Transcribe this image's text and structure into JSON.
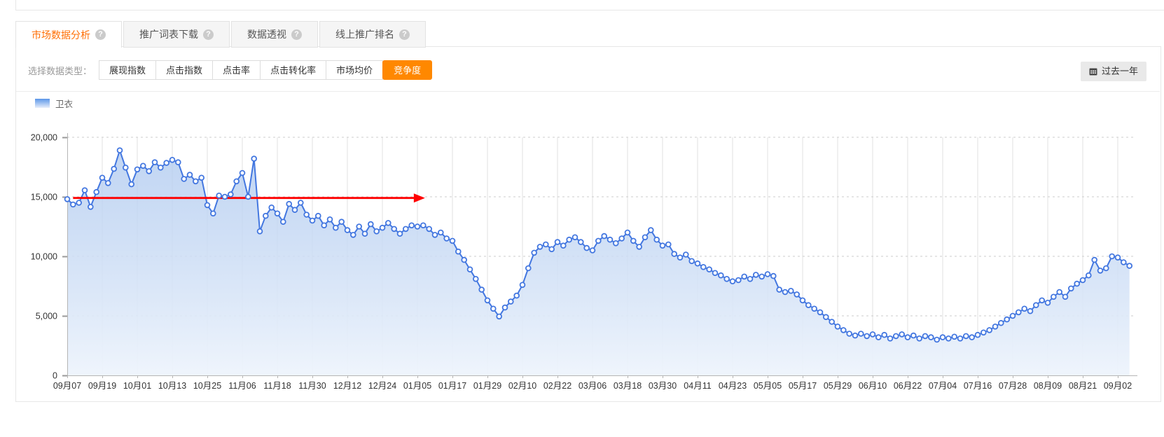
{
  "tabs": {
    "items": [
      {
        "label": "市场数据分析",
        "active": true
      },
      {
        "label": "推广词表下载",
        "active": false
      },
      {
        "label": "数据透视",
        "active": false
      },
      {
        "label": "线上推广排名",
        "active": false
      }
    ],
    "help_glyph": "?"
  },
  "toolbar": {
    "label": "选择数据类型：",
    "metric_buttons": [
      "展现指数",
      "点击指数",
      "点击率",
      "点击转化率",
      "市场均价",
      "竞争度"
    ],
    "active_metric": "竞争度",
    "date_range_label": "过去一年"
  },
  "legend": {
    "series_label": "卫衣"
  },
  "colors": {
    "accent_orange": "#ff6f06",
    "active_button_bg": "#ff8800",
    "line_blue": "#4377e0",
    "area_top": "#aac6ee",
    "area_bottom": "#eef4fc",
    "annotation_red": "#ff0000",
    "grid_vertical": "#e2e2e2",
    "grid_horizontal": "#cccccc",
    "axis": "#b5b5b5",
    "axis_text": "#333333"
  },
  "chart_data": {
    "type": "area",
    "title": "",
    "legend_position": "top-left",
    "grid": "vertical solid, horizontal dashed",
    "ylim": [
      0,
      20000
    ],
    "y_tick_values": [
      0,
      5000,
      10000,
      15000,
      20000
    ],
    "y_tick_labels": [
      "0",
      "5,000",
      "10,000",
      "15,000",
      "20,000"
    ],
    "x_tick_labels": [
      "09月07",
      "09月19",
      "10月01",
      "10月13",
      "10月25",
      "11月06",
      "11月18",
      "11月30",
      "12月12",
      "12月24",
      "01月05",
      "01月17",
      "01月29",
      "02月10",
      "02月22",
      "03月06",
      "03月18",
      "03月30",
      "04月11",
      "04月23",
      "05月05",
      "05月17",
      "05月29",
      "06月10",
      "06月22",
      "07月04",
      "07月16",
      "07月28",
      "08月09",
      "08月21",
      "09月02"
    ],
    "x_tick_interval_days": 12,
    "sample_interval_days": 2,
    "series": [
      {
        "name": "卫衣",
        "values": [
          14800,
          14350,
          14500,
          15550,
          14150,
          15400,
          16600,
          16150,
          17350,
          18900,
          17450,
          16050,
          17300,
          17600,
          17150,
          17900,
          17450,
          17850,
          18100,
          17900,
          16500,
          16850,
          16300,
          16600,
          14300,
          13600,
          15100,
          15000,
          15200,
          16300,
          17000,
          15000,
          18200,
          12100,
          13400,
          14100,
          13600,
          12900,
          14400,
          13900,
          14500,
          13500,
          13000,
          13400,
          12600,
          13100,
          12400,
          12900,
          12200,
          11800,
          12500,
          11900,
          12700,
          12100,
          12400,
          12800,
          12300,
          11900,
          12300,
          12600,
          12500,
          12600,
          12300,
          11800,
          12000,
          11500,
          11300,
          10400,
          9700,
          8900,
          8100,
          7200,
          6300,
          5600,
          4950,
          5700,
          6200,
          6700,
          7600,
          9000,
          10300,
          10800,
          11000,
          10600,
          11200,
          10900,
          11400,
          11600,
          11200,
          10700,
          10500,
          11300,
          11700,
          11400,
          11100,
          11500,
          12000,
          11300,
          10800,
          11600,
          12200,
          11400,
          10900,
          11000,
          10200,
          9900,
          10150,
          9600,
          9400,
          9100,
          8900,
          8600,
          8400,
          8100,
          7900,
          8000,
          8300,
          8100,
          8450,
          8300,
          8500,
          8350,
          7200,
          7000,
          7100,
          6800,
          6300,
          5900,
          5600,
          5300,
          4900,
          4500,
          4100,
          3800,
          3500,
          3350,
          3500,
          3300,
          3450,
          3200,
          3400,
          3100,
          3300,
          3450,
          3200,
          3350,
          3100,
          3300,
          3200,
          3000,
          3200,
          3100,
          3250,
          3100,
          3300,
          3200,
          3400,
          3600,
          3800,
          4100,
          4400,
          4700,
          5000,
          5300,
          5600,
          5400,
          5900,
          6300,
          6100,
          6600,
          7000,
          6600,
          7300,
          7700,
          8000,
          8400,
          9700,
          8800,
          9000,
          10000,
          9900,
          9500,
          9200
        ]
      }
    ],
    "annotation": {
      "type": "arrow-line",
      "color": "#ff0000",
      "y_value": 14900,
      "from_day": 2,
      "to_day": 119
    }
  }
}
